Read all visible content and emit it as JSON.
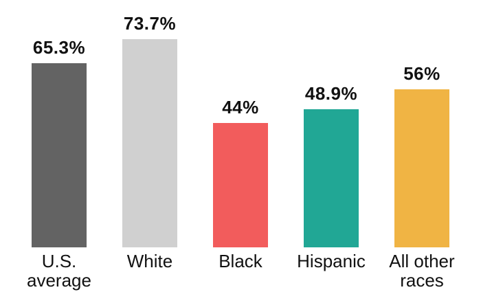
{
  "page": {
    "background": "#ffffff",
    "text_color": "#111111"
  },
  "chart_data": {
    "type": "bar",
    "title": "",
    "xlabel": "",
    "ylabel": "",
    "unit": "%",
    "categories": [
      "U.S. average",
      "White",
      "Black",
      "Hispanic",
      "All other races"
    ],
    "values": [
      65.3,
      73.7,
      44,
      48.9,
      56
    ],
    "ylim": [
      0,
      87.5
    ],
    "grid": false,
    "legend": false,
    "axes_visible": false,
    "value_label_position": "above-bar",
    "bars": [
      {
        "category": "U.S. average",
        "value": 65.3,
        "value_label": "65.3%",
        "color": "#636363"
      },
      {
        "category": "White",
        "value": 73.7,
        "value_label": "73.7%",
        "color": "#d0d0d0"
      },
      {
        "category": "Black",
        "value": 44,
        "value_label": "44%",
        "color": "#f25c5c"
      },
      {
        "category": "Hispanic",
        "value": 48.9,
        "value_label": "48.9%",
        "color": "#21a795"
      },
      {
        "category": "All other races",
        "value": 56,
        "value_label": "56%",
        "color": "#f0b444"
      }
    ]
  }
}
